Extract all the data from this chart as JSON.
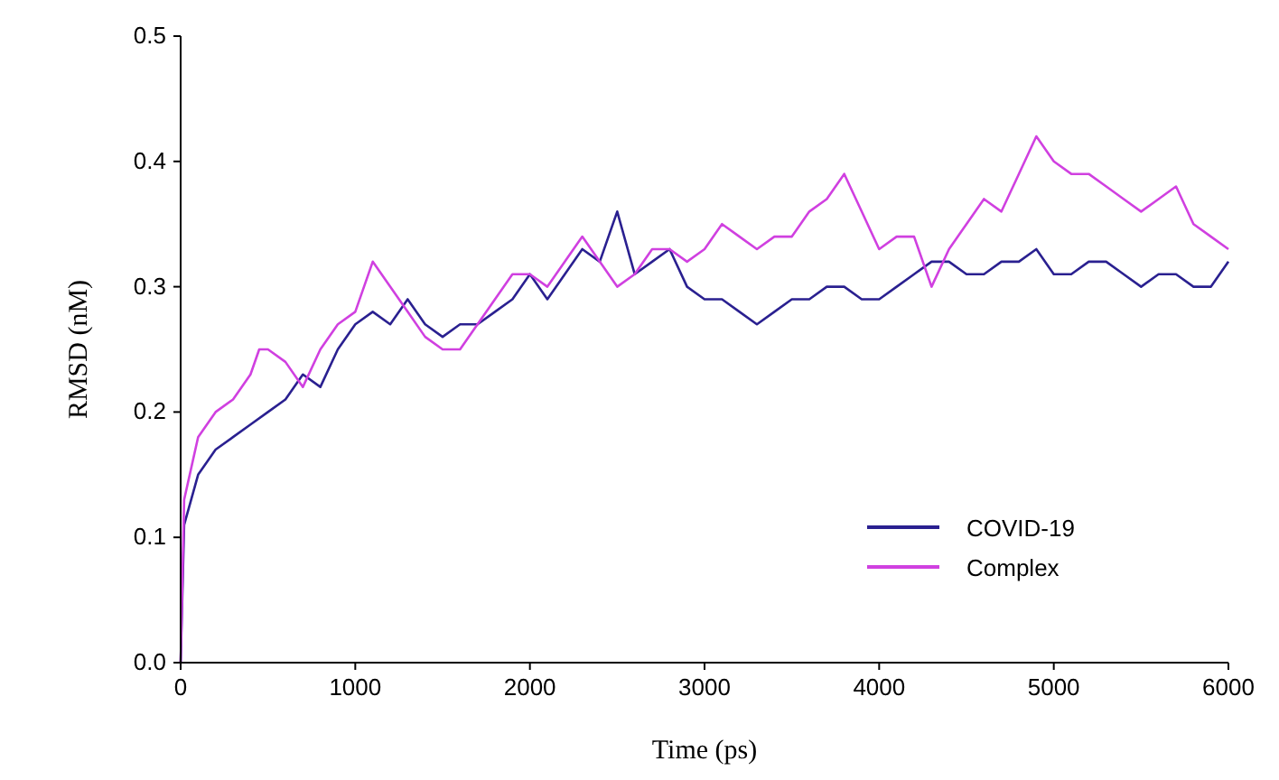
{
  "chart_data": {
    "type": "line",
    "xlabel": "Time (ps)",
    "ylabel": "RMSD (nM)",
    "xlim": [
      0,
      6000
    ],
    "ylim": [
      0,
      0.5
    ],
    "xticks": [
      0,
      1000,
      2000,
      3000,
      4000,
      5000,
      6000
    ],
    "yticks": [
      {
        "value": 0,
        "label": "0.0"
      },
      0.1,
      0.2,
      0.3,
      0.4,
      0.5
    ],
    "grid": false,
    "legend": "bottom right",
    "line_style": "solid",
    "marker": "none",
    "series": [
      {
        "name": "COVID-19",
        "color": "#2a2090",
        "x": [
          0,
          20,
          100,
          200,
          300,
          400,
          500,
          600,
          700,
          800,
          900,
          1000,
          1100,
          1200,
          1300,
          1400,
          1500,
          1600,
          1700,
          1800,
          1900,
          2000,
          2100,
          2200,
          2300,
          2400,
          2500,
          2600,
          2700,
          2800,
          2900,
          3000,
          3100,
          3200,
          3300,
          3400,
          3500,
          3600,
          3700,
          3800,
          3900,
          4000,
          4100,
          4200,
          4300,
          4400,
          4500,
          4600,
          4700,
          4800,
          4900,
          5000,
          5100,
          5200,
          5300,
          5400,
          5500,
          5600,
          5700,
          5800,
          5900,
          6000
        ],
        "values": [
          0,
          0.11,
          0.15,
          0.17,
          0.18,
          0.19,
          0.2,
          0.21,
          0.23,
          0.22,
          0.25,
          0.27,
          0.28,
          0.27,
          0.29,
          0.27,
          0.26,
          0.27,
          0.27,
          0.28,
          0.29,
          0.31,
          0.29,
          0.31,
          0.33,
          0.32,
          0.36,
          0.31,
          0.32,
          0.33,
          0.3,
          0.29,
          0.29,
          0.28,
          0.27,
          0.28,
          0.29,
          0.29,
          0.3,
          0.3,
          0.29,
          0.29,
          0.3,
          0.31,
          0.32,
          0.32,
          0.31,
          0.31,
          0.32,
          0.32,
          0.33,
          0.31,
          0.31,
          0.32,
          0.32,
          0.31,
          0.3,
          0.31,
          0.31,
          0.3,
          0.3,
          0.32
        ]
      },
      {
        "name": "Complex",
        "color": "#d040e0",
        "x": [
          0,
          20,
          100,
          200,
          300,
          400,
          450,
          500,
          600,
          700,
          800,
          900,
          1000,
          1100,
          1200,
          1300,
          1400,
          1500,
          1600,
          1700,
          1800,
          1900,
          2000,
          2100,
          2200,
          2300,
          2400,
          2500,
          2600,
          2700,
          2800,
          2900,
          3000,
          3100,
          3200,
          3300,
          3400,
          3500,
          3600,
          3700,
          3800,
          3900,
          4000,
          4100,
          4200,
          4300,
          4400,
          4500,
          4600,
          4700,
          4800,
          4900,
          5000,
          5100,
          5200,
          5300,
          5400,
          5500,
          5600,
          5700,
          5800,
          5900,
          6000
        ],
        "values": [
          0,
          0.13,
          0.18,
          0.2,
          0.21,
          0.23,
          0.25,
          0.25,
          0.24,
          0.22,
          0.25,
          0.27,
          0.28,
          0.32,
          0.3,
          0.28,
          0.26,
          0.25,
          0.25,
          0.27,
          0.29,
          0.31,
          0.31,
          0.3,
          0.32,
          0.34,
          0.32,
          0.3,
          0.31,
          0.33,
          0.33,
          0.32,
          0.33,
          0.35,
          0.34,
          0.33,
          0.34,
          0.34,
          0.36,
          0.37,
          0.39,
          0.36,
          0.33,
          0.34,
          0.34,
          0.3,
          0.33,
          0.35,
          0.37,
          0.36,
          0.39,
          0.42,
          0.4,
          0.39,
          0.39,
          0.38,
          0.37,
          0.36,
          0.37,
          0.38,
          0.35,
          0.34,
          0.33
        ]
      }
    ]
  }
}
